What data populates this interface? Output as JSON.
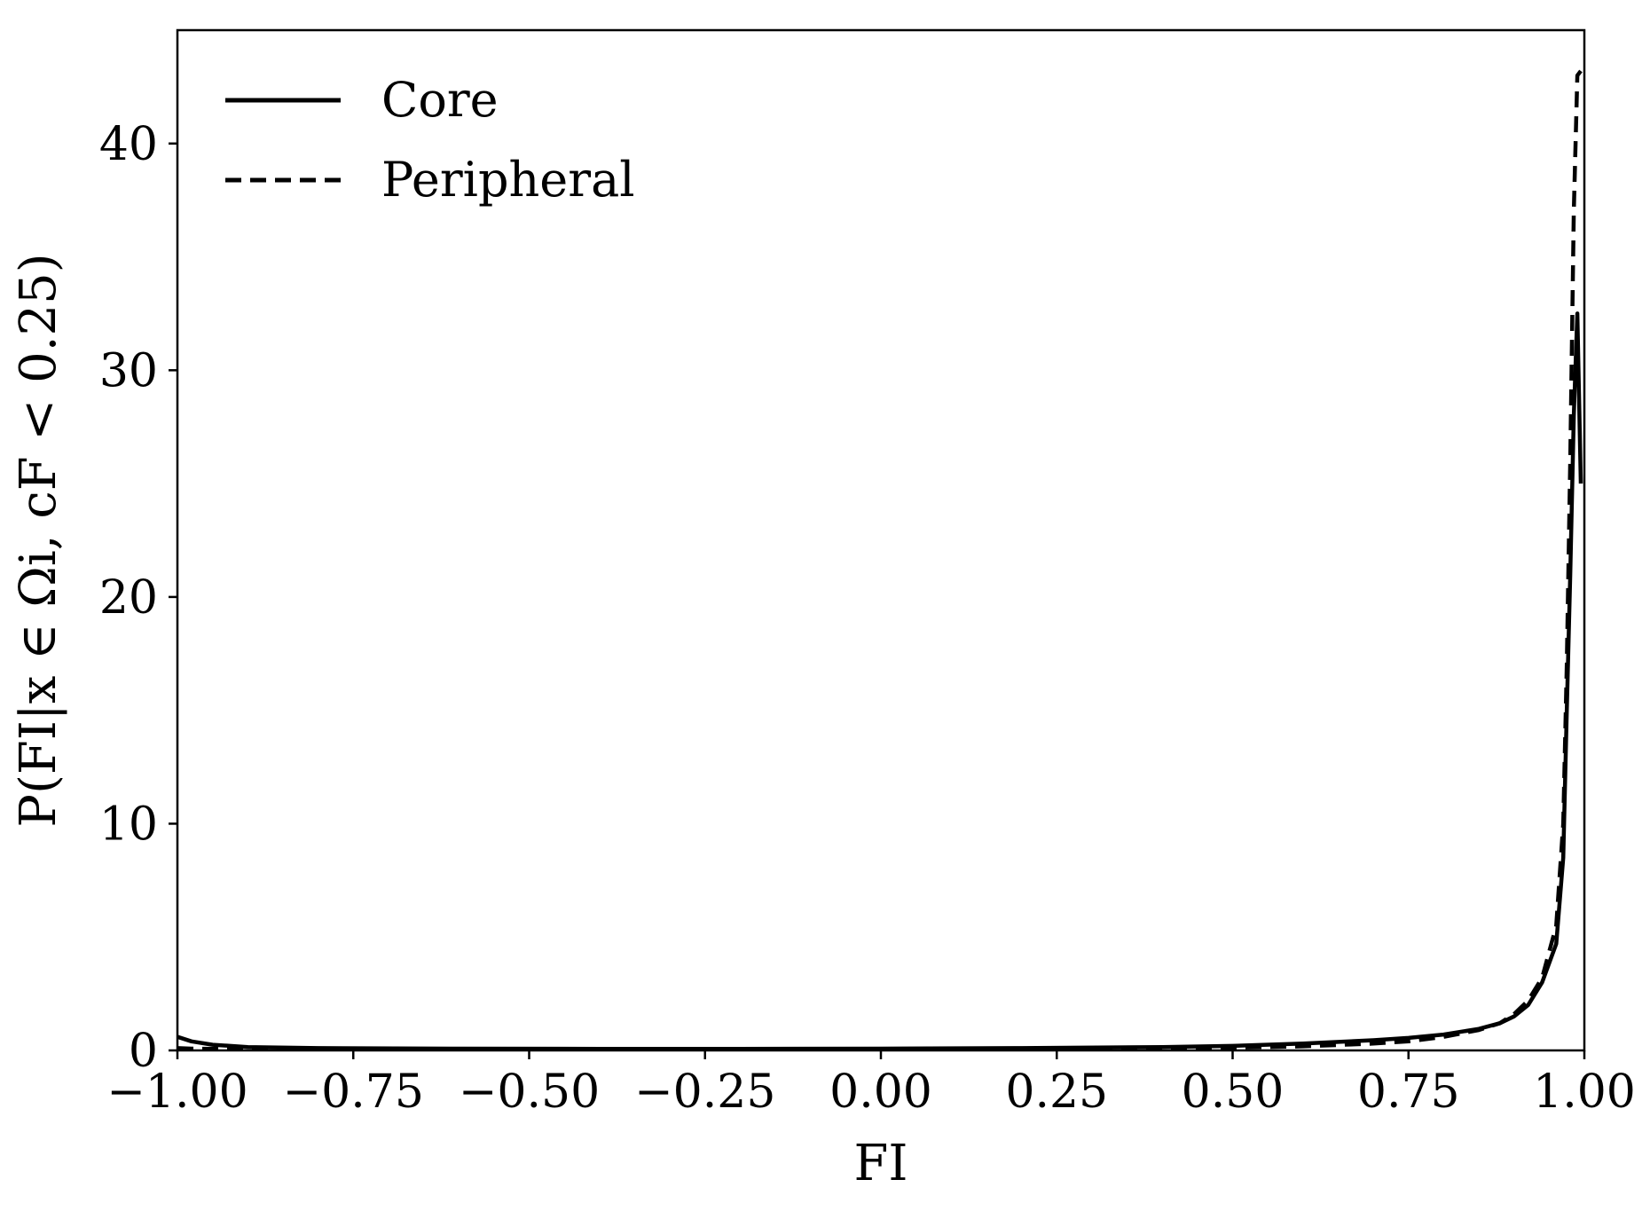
{
  "chart_data": {
    "type": "line",
    "title": "",
    "xlabel": "FI",
    "ylabel": "P(FI|x ∈ Ωi, cF < 0.25)",
    "xlim": [
      -1.0,
      1.0
    ],
    "ylim": [
      0,
      45
    ],
    "x_ticks": [
      -1.0,
      -0.75,
      -0.5,
      -0.25,
      0.0,
      0.25,
      0.5,
      0.75,
      1.0
    ],
    "x_tick_labels": [
      "−1.00",
      "−0.75",
      "−0.50",
      "−0.25",
      "0.00",
      "0.25",
      "0.50",
      "0.75",
      "1.00"
    ],
    "y_ticks": [
      0,
      10,
      20,
      30,
      40
    ],
    "y_tick_labels": [
      "0",
      "10",
      "20",
      "30",
      "40"
    ],
    "grid": false,
    "legend_position": "top-left",
    "series": [
      {
        "name": "Core",
        "style": "solid",
        "color": "#000000",
        "x": [
          -1.0,
          -0.98,
          -0.95,
          -0.9,
          -0.8,
          -0.6,
          -0.4,
          -0.2,
          0.0,
          0.2,
          0.4,
          0.5,
          0.6,
          0.7,
          0.75,
          0.8,
          0.85,
          0.88,
          0.9,
          0.92,
          0.94,
          0.96,
          0.97,
          0.975,
          0.98,
          0.985,
          0.99,
          0.995
        ],
        "y": [
          0.6,
          0.4,
          0.25,
          0.15,
          0.1,
          0.08,
          0.07,
          0.07,
          0.08,
          0.1,
          0.15,
          0.2,
          0.3,
          0.45,
          0.55,
          0.7,
          0.95,
          1.2,
          1.5,
          2.0,
          3.0,
          4.7,
          8.5,
          15.0,
          21.0,
          28.0,
          32.5,
          25.0
        ]
      },
      {
        "name": "Peripheral",
        "style": "dashed",
        "color": "#000000",
        "x": [
          -1.0,
          -0.98,
          -0.95,
          -0.9,
          -0.8,
          -0.6,
          -0.4,
          -0.2,
          0.0,
          0.2,
          0.4,
          0.5,
          0.6,
          0.7,
          0.75,
          0.8,
          0.85,
          0.88,
          0.9,
          0.92,
          0.94,
          0.96,
          0.97,
          0.975,
          0.98,
          0.985,
          0.99,
          0.995
        ],
        "y": [
          0.1,
          0.08,
          0.07,
          0.06,
          0.05,
          0.05,
          0.05,
          0.05,
          0.05,
          0.06,
          0.09,
          0.12,
          0.18,
          0.3,
          0.4,
          0.6,
          0.9,
          1.2,
          1.6,
          2.2,
          3.2,
          5.5,
          10.0,
          17.0,
          26.0,
          37.0,
          43.0,
          43.2
        ]
      }
    ]
  }
}
